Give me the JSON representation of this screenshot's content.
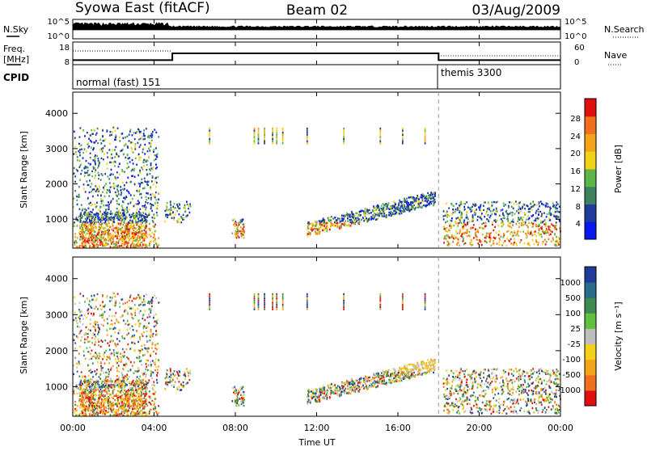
{
  "header": {
    "station": "Syowa East (fitACF)",
    "beam": "Beam 02",
    "date": "03/Aug/2009"
  },
  "nsky_panel": {
    "left_label": "N.Sky",
    "left_ticks": [
      "10^5",
      "10^0"
    ],
    "right_label": "N.Search",
    "right_ticks": [
      "10^5",
      "10^0"
    ]
  },
  "freq_panel": {
    "left_label_1": "Freq.",
    "left_label_2": "[MHz]",
    "left_ticks": [
      "18",
      "8"
    ],
    "right_label": "Nave",
    "right_ticks": [
      "60",
      "0"
    ]
  },
  "cpid_panel": {
    "label": "CPID",
    "modes": [
      "normal (fast) 151",
      "themis 3300"
    ]
  },
  "power_panel": {
    "ylabel": "Slant Range [km]",
    "yticks": [
      "1000",
      "2000",
      "3000",
      "4000"
    ],
    "colorbar_label": "Power [dB]",
    "colorbar_ticks": [
      "4",
      "8",
      "12",
      "16",
      "20",
      "24",
      "28"
    ],
    "colors": [
      "#0a18f0",
      "#1f3b9c",
      "#3f8060",
      "#5cb548",
      "#f2d218",
      "#f4a418",
      "#f07020",
      "#e01010"
    ]
  },
  "velocity_panel": {
    "ylabel": "Slant Range [km]",
    "yticks": [
      "1000",
      "2000",
      "3000",
      "4000"
    ],
    "colorbar_label": "Velocity [m s⁻¹]",
    "colorbar_ticks": [
      "1000",
      "500",
      "100",
      "25",
      "-25",
      "-100",
      "-500",
      "-1000"
    ],
    "colors": [
      "#1f3b9c",
      "#2a6a8a",
      "#3f8a50",
      "#60c040",
      "#bebebe",
      "#f2d218",
      "#f4a418",
      "#f07020",
      "#e01010"
    ]
  },
  "time_axis": {
    "label": "Time UT",
    "ticks": [
      "00:00",
      "04:00",
      "08:00",
      "12:00",
      "16:00",
      "20:00",
      "00:00"
    ]
  },
  "chart_data": {
    "type": "heatmap",
    "x_range_hours": [
      0,
      24
    ],
    "y_range_km": [
      180,
      4600
    ],
    "mode_change_hour": 18,
    "freq_series": [
      {
        "x": [
          0,
          4.9,
          4.9,
          18,
          18,
          24
        ],
        "y": [
          10,
          10,
          13,
          13,
          10,
          10
        ]
      }
    ],
    "scatter_regions": [
      {
        "t0": 0.0,
        "t1": 4.2,
        "r0": 200,
        "r1": 3600
      },
      {
        "t0": 0.3,
        "t1": 3.6,
        "r0": 200,
        "r1": 1200
      },
      {
        "t0": 4.5,
        "t1": 5.8,
        "r0": 900,
        "r1": 1500
      },
      {
        "t0": 7.8,
        "t1": 8.4,
        "r0": 450,
        "r1": 1000
      },
      {
        "t0": 11.5,
        "t1": 17.8,
        "r0": 600,
        "r1": 1800
      },
      {
        "t0": 18.2,
        "t1": 24.0,
        "r0": 250,
        "r1": 1500
      }
    ]
  }
}
